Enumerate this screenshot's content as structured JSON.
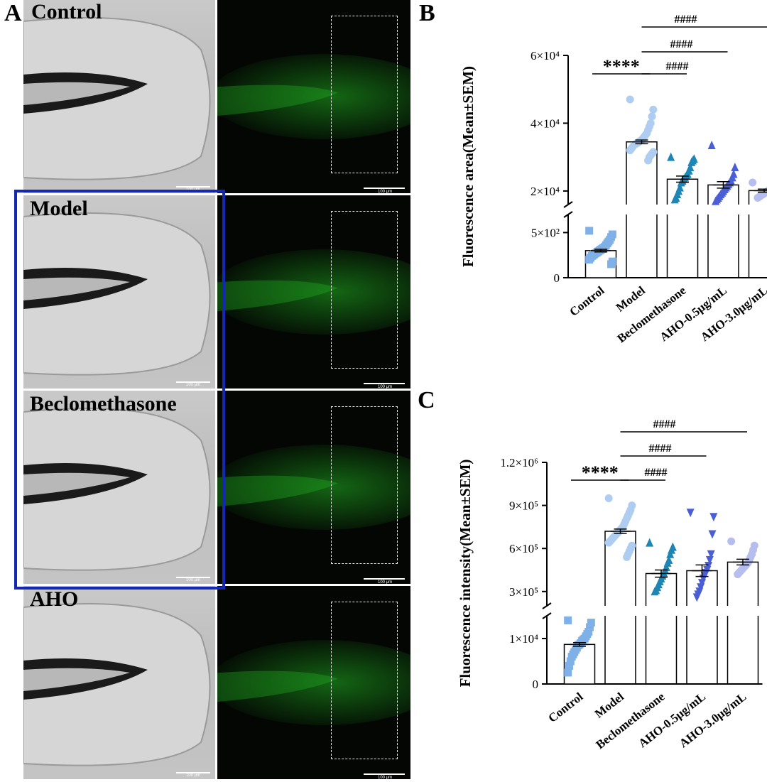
{
  "panels": {
    "a_letter": "A",
    "b_letter": "B",
    "c_letter": "C"
  },
  "micrographs": {
    "rows": [
      {
        "label": "Control",
        "scale_bf": "100 μm",
        "scale_fl": "100 μm"
      },
      {
        "label": "Model",
        "scale_bf": "100 μm",
        "scale_fl": "100 μm"
      },
      {
        "label": "Beclomethasone",
        "scale_bf": "100 μm",
        "scale_fl": "100 μm"
      },
      {
        "label": "AHO",
        "scale_bf": "100 μm",
        "scale_fl": "100 μm"
      }
    ],
    "highlight_color": "#1428b4",
    "fluorescence_color": "#22b422"
  },
  "chart_data": [
    {
      "type": "bar",
      "panel": "B",
      "ylabel": "Fluorescence area(Mean±SEM)",
      "categories": [
        "Control",
        "Model",
        "Beclomethasone",
        "AHO-0.5μg/mL",
        "AHO-3.0μg/mL"
      ],
      "values": [
        300,
        34500,
        23500,
        21800,
        20100
      ],
      "sem": [
        15,
        550,
        900,
        950,
        450
      ],
      "y_axis_break": true,
      "lower_segment": {
        "ylim": [
          0,
          700
        ],
        "ticks": [
          0,
          500
        ],
        "tick_labels": [
          "0",
          "5×10²"
        ]
      },
      "upper_segment": {
        "ylim": [
          16000,
          60000
        ],
        "ticks": [
          20000,
          40000,
          60000
        ],
        "tick_labels": [
          "2×10⁴",
          "4×10⁴",
          "6×10⁴"
        ]
      },
      "series_colors": [
        "#7fb0e8",
        "#aecdf0",
        "#1e86b4",
        "#4a5fd6",
        "#b6bef0"
      ],
      "marker_shapes": [
        "square",
        "circle",
        "triangle-up",
        "triangle-up",
        "circle"
      ],
      "points": [
        [
          520,
          480,
          450,
          420,
          400,
          380,
          360,
          340,
          330,
          320,
          310,
          300,
          290,
          280,
          270,
          260,
          250,
          240,
          220,
          200,
          180,
          150
        ],
        [
          47000,
          44000,
          42000,
          40000,
          39000,
          38000,
          37000,
          36500,
          36000,
          35500,
          35000,
          34800,
          34500,
          34200,
          34000,
          33800,
          33500,
          33000,
          32500,
          32000,
          31500,
          31000,
          30500,
          30000,
          29000
        ],
        [
          30000,
          29500,
          29000,
          28500,
          27000,
          26000,
          25000,
          24500,
          24000,
          23500,
          23000,
          22500,
          21000,
          20000,
          19000,
          18000,
          17500
        ],
        [
          33500,
          27000,
          25000,
          24000,
          23000,
          22500,
          22000,
          21500,
          21000,
          20500,
          20000,
          19500,
          19000,
          18500,
          18000,
          17500,
          17000
        ],
        [
          22500,
          22000,
          21500,
          21000,
          20800,
          20500,
          20300,
          20000,
          19800,
          19500,
          19300,
          19000,
          18800,
          18500,
          18200,
          18000
        ]
      ],
      "significance": [
        {
          "from": 0,
          "to": 1,
          "label": "****"
        },
        {
          "from": 1,
          "to": 2,
          "label": "####"
        },
        {
          "from": 1,
          "to": 3,
          "label": "####"
        },
        {
          "from": 1,
          "to": 4,
          "label": "####"
        }
      ]
    },
    {
      "type": "bar",
      "panel": "C",
      "ylabel": "Fluorescence intensity(Mean±SEM)",
      "categories": [
        "Control",
        "Model",
        "Beclomethasone",
        "AHO-0.5μg/mL",
        "AHO-3.0μg/mL"
      ],
      "values": [
        8700,
        720000,
        425000,
        445000,
        505000
      ],
      "sem": [
        400,
        15000,
        25000,
        40000,
        20000
      ],
      "y_axis_break": true,
      "lower_segment": {
        "ylim": [
          0,
          15000
        ],
        "ticks": [
          0,
          10000
        ],
        "tick_labels": [
          "0",
          "1×10⁴"
        ]
      },
      "upper_segment": {
        "ylim": [
          200000,
          1200000
        ],
        "ticks": [
          300000,
          600000,
          900000,
          1200000
        ],
        "tick_labels": [
          "3×10⁵",
          "6×10⁵",
          "9×10⁵",
          "1.2×10⁶"
        ]
      },
      "series_colors": [
        "#7fb0e8",
        "#aecdf0",
        "#1e86b4",
        "#4a5fd6",
        "#b6bef0"
      ],
      "marker_shapes": [
        "square",
        "circle",
        "triangle-up",
        "triangle-down",
        "circle"
      ],
      "points": [
        [
          14000,
          13500,
          12500,
          11500,
          11000,
          10500,
          10000,
          9800,
          9500,
          9000,
          8700,
          8500,
          8000,
          7500,
          7000,
          6500,
          6000,
          5000,
          4000,
          2500
        ],
        [
          950000,
          900000,
          870000,
          850000,
          830000,
          810000,
          790000,
          770000,
          750000,
          740000,
          730000,
          720000,
          710000,
          700000,
          690000,
          680000,
          670000,
          660000,
          650000,
          640000,
          620000,
          600000,
          580000,
          560000,
          540000
        ],
        [
          640000,
          610000,
          590000,
          560000,
          520000,
          500000,
          470000,
          450000,
          430000,
          410000,
          390000,
          370000,
          350000,
          330000,
          310000,
          300000
        ],
        [
          850000,
          820000,
          700000,
          560000,
          520000,
          480000,
          450000,
          430000,
          410000,
          390000,
          360000,
          330000,
          300000,
          280000,
          260000
        ],
        [
          650000,
          620000,
          590000,
          560000,
          540000,
          520000,
          500000,
          490000,
          480000,
          470000,
          460000,
          450000,
          440000,
          430000,
          420000
        ]
      ],
      "significance": [
        {
          "from": 0,
          "to": 1,
          "label": "****"
        },
        {
          "from": 1,
          "to": 2,
          "label": "####"
        },
        {
          "from": 1,
          "to": 3,
          "label": "####"
        },
        {
          "from": 1,
          "to": 4,
          "label": "####"
        }
      ]
    }
  ]
}
